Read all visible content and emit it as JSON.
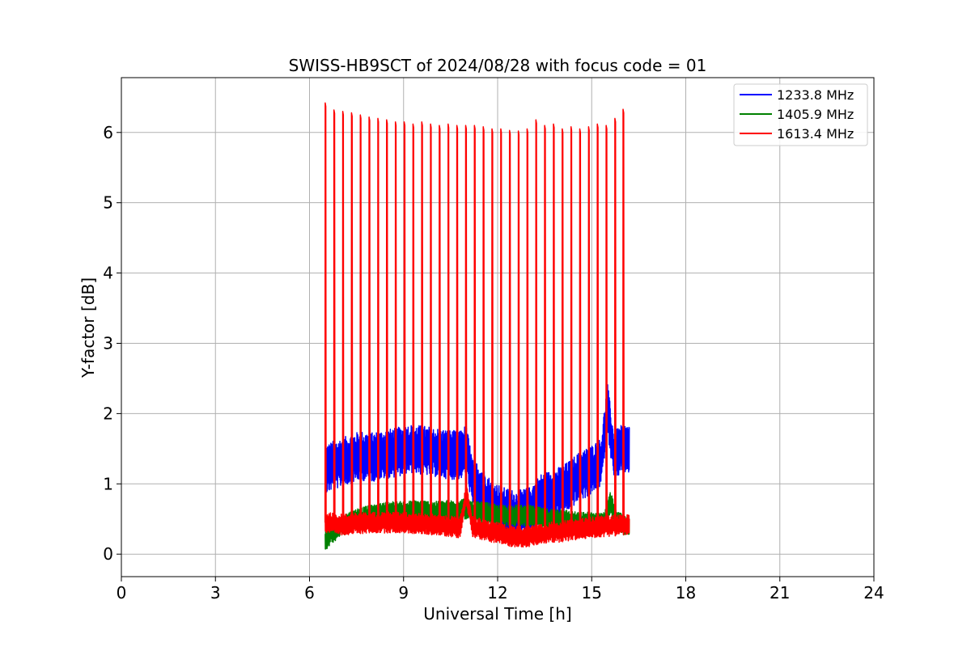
{
  "chart_data": {
    "type": "line",
    "title": "SWISS-HB9SCT of 2024/08/28 with focus code = 01",
    "xlabel": "Universal Time [h]",
    "ylabel": "Y-factor [dB]",
    "xlim": [
      0,
      24
    ],
    "ylim": [
      -0.32,
      6.78
    ],
    "xticks": [
      0,
      3,
      6,
      9,
      12,
      15,
      18,
      21,
      24
    ],
    "yticks": [
      0,
      1,
      2,
      3,
      4,
      5,
      6
    ],
    "grid": true,
    "legend_position": "top-right",
    "series": [
      {
        "name": "1233.8 MHz",
        "color": "#0000ff",
        "x": [
          6.5,
          6.7,
          7.0,
          7.3,
          7.6,
          8.0,
          8.4,
          8.8,
          9.2,
          9.6,
          10.0,
          10.4,
          10.8,
          11.0,
          11.2,
          11.5,
          11.8,
          12.2,
          12.6,
          13.0,
          13.4,
          13.8,
          14.2,
          14.6,
          15.0,
          15.3,
          15.5,
          15.7,
          16.0,
          16.2
        ],
        "values": [
          1.2,
          1.25,
          1.3,
          1.35,
          1.4,
          1.38,
          1.42,
          1.45,
          1.5,
          1.48,
          1.45,
          1.42,
          1.4,
          1.5,
          1.0,
          0.9,
          0.7,
          0.6,
          0.55,
          0.6,
          0.8,
          0.85,
          0.95,
          1.1,
          1.2,
          1.3,
          2.1,
          1.4,
          1.5,
          1.5
        ],
        "band": 0.35
      },
      {
        "name": "1405.9 MHz",
        "color": "#008000",
        "x": [
          6.5,
          6.7,
          7.0,
          7.5,
          8.0,
          8.5,
          9.0,
          9.5,
          10.0,
          10.5,
          11.0,
          11.2,
          11.5,
          12.0,
          12.5,
          13.0,
          13.5,
          14.0,
          14.5,
          15.0,
          15.4,
          15.6,
          15.8,
          16.2
        ],
        "values": [
          0.2,
          0.3,
          0.4,
          0.5,
          0.55,
          0.6,
          0.6,
          0.62,
          0.6,
          0.62,
          0.65,
          0.6,
          0.6,
          0.55,
          0.55,
          0.55,
          0.5,
          0.5,
          0.45,
          0.45,
          0.45,
          0.75,
          0.45,
          0.4
        ],
        "band": 0.15
      },
      {
        "name": "1613.4 MHz",
        "color": "#ff0000",
        "x": [
          6.5,
          7.0,
          8.0,
          9.0,
          10.0,
          10.8,
          11.0,
          11.2,
          11.5,
          12.0,
          12.5,
          13.0,
          13.5,
          14.0,
          14.5,
          15.0,
          15.5,
          16.0,
          16.2
        ],
        "values": [
          0.45,
          0.42,
          0.45,
          0.45,
          0.42,
          0.38,
          0.85,
          0.4,
          0.35,
          0.3,
          0.25,
          0.25,
          0.3,
          0.32,
          0.35,
          0.38,
          0.4,
          0.42,
          0.42
        ],
        "band": 0.15,
        "spikes": {
          "x": [
            6.5,
            6.78,
            7.06,
            7.34,
            7.62,
            7.9,
            8.18,
            8.46,
            8.74,
            9.02,
            9.3,
            9.58,
            9.86,
            10.14,
            10.42,
            10.7,
            10.98,
            11.26,
            11.54,
            11.82,
            12.1,
            12.38,
            12.66,
            12.94,
            13.22,
            13.5,
            13.78,
            14.06,
            14.34,
            14.62,
            14.9,
            15.18,
            15.46,
            15.74,
            16.0
          ],
          "values": [
            6.42,
            6.32,
            6.3,
            6.28,
            6.25,
            6.22,
            6.2,
            6.18,
            6.15,
            6.15,
            6.12,
            6.15,
            6.12,
            6.1,
            6.12,
            6.1,
            6.1,
            6.1,
            6.08,
            6.05,
            6.05,
            6.03,
            6.02,
            6.05,
            6.18,
            6.1,
            6.12,
            6.05,
            6.08,
            6.05,
            6.08,
            6.12,
            6.1,
            6.2,
            6.33
          ]
        }
      }
    ]
  }
}
